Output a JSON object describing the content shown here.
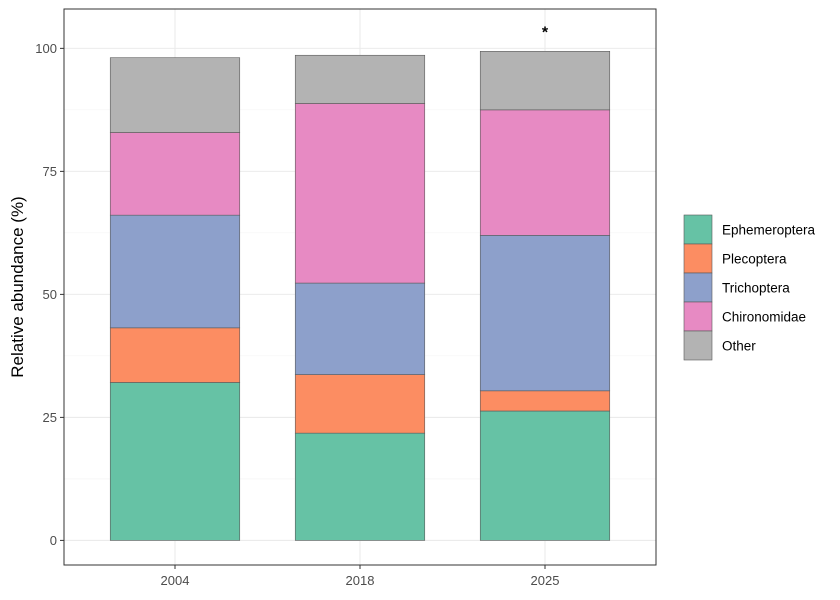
{
  "chart_data": {
    "type": "bar",
    "stacked": true,
    "categories": [
      "2004",
      "2018",
      "2025"
    ],
    "series": [
      {
        "name": "Ephemeroptera",
        "color": "#66c2a5",
        "values": [
          32.1,
          21.8,
          26.3
        ]
      },
      {
        "name": "Plecoptera",
        "color": "#fc8d62",
        "values": [
          11.1,
          11.9,
          4.1
        ]
      },
      {
        "name": "Trichoptera",
        "color": "#8da0cb",
        "values": [
          22.9,
          18.6,
          31.6
        ]
      },
      {
        "name": "Chironomidae",
        "color": "#e78ac3",
        "values": [
          16.8,
          36.5,
          25.5
        ]
      },
      {
        "name": "Other",
        "color": "#b3b3b3",
        "values": [
          15.2,
          9.8,
          11.9
        ]
      }
    ],
    "title": "",
    "xlabel": "",
    "ylabel": "Relative abundance (%)",
    "ylim": [
      -5,
      108
    ],
    "yticks": [
      0,
      25,
      50,
      75,
      100
    ],
    "grid": true,
    "legend": "right",
    "annotations": [
      {
        "category": "2025",
        "text": "*"
      }
    ]
  }
}
